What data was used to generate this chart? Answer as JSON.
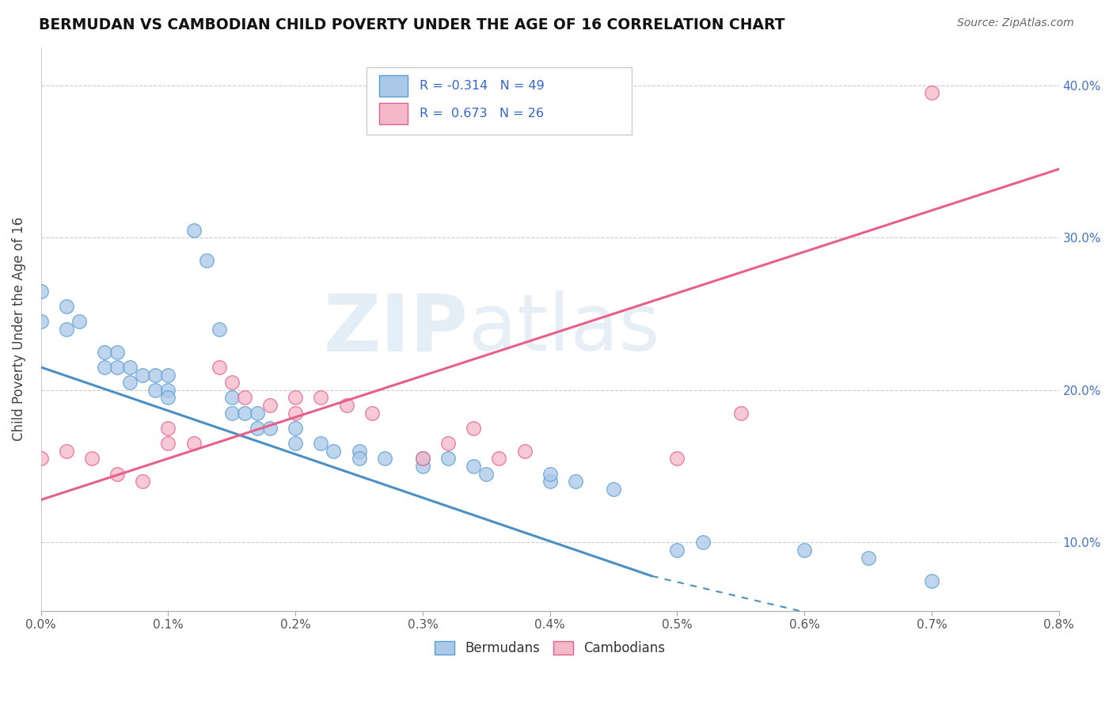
{
  "title": "BERMUDAN VS CAMBODIAN CHILD POVERTY UNDER THE AGE OF 16 CORRELATION CHART",
  "source": "Source: ZipAtlas.com",
  "ylabel": "Child Poverty Under the Age of 16",
  "xmin": 0.0,
  "xmax": 0.008,
  "ymin": 0.055,
  "ymax": 0.425,
  "ytick_vals": [
    0.1,
    0.2,
    0.3,
    0.4
  ],
  "xtick_vals": [
    0.0,
    0.001,
    0.002,
    0.003,
    0.004,
    0.005,
    0.006,
    0.007,
    0.008
  ],
  "watermark_zip": "ZIP",
  "watermark_atlas": "atlas",
  "bermuda_color": "#aac8e8",
  "bermuda_edge_color": "#5a9fd4",
  "cambodia_color": "#f5b8c8",
  "cambodia_edge_color": "#e06090",
  "bermuda_line_color": "#4a90c4",
  "cambodia_line_color": "#e8608a",
  "bermuda_scatter": [
    [
      0.0,
      0.265
    ],
    [
      0.0,
      0.245
    ],
    [
      0.0002,
      0.255
    ],
    [
      0.0002,
      0.24
    ],
    [
      0.0003,
      0.245
    ],
    [
      0.0005,
      0.225
    ],
    [
      0.0005,
      0.215
    ],
    [
      0.0006,
      0.225
    ],
    [
      0.0006,
      0.215
    ],
    [
      0.0007,
      0.215
    ],
    [
      0.0007,
      0.205
    ],
    [
      0.0008,
      0.21
    ],
    [
      0.0009,
      0.21
    ],
    [
      0.0009,
      0.2
    ],
    [
      0.001,
      0.21
    ],
    [
      0.001,
      0.2
    ],
    [
      0.001,
      0.195
    ],
    [
      0.0012,
      0.305
    ],
    [
      0.0013,
      0.285
    ],
    [
      0.0014,
      0.24
    ],
    [
      0.0015,
      0.195
    ],
    [
      0.0015,
      0.185
    ],
    [
      0.0016,
      0.185
    ],
    [
      0.0017,
      0.185
    ],
    [
      0.0017,
      0.175
    ],
    [
      0.0018,
      0.175
    ],
    [
      0.002,
      0.175
    ],
    [
      0.002,
      0.165
    ],
    [
      0.0022,
      0.165
    ],
    [
      0.0023,
      0.16
    ],
    [
      0.0025,
      0.16
    ],
    [
      0.0025,
      0.155
    ],
    [
      0.0027,
      0.155
    ],
    [
      0.003,
      0.15
    ],
    [
      0.003,
      0.155
    ],
    [
      0.0032,
      0.155
    ],
    [
      0.0034,
      0.15
    ],
    [
      0.0035,
      0.145
    ],
    [
      0.004,
      0.14
    ],
    [
      0.004,
      0.145
    ],
    [
      0.0042,
      0.14
    ],
    [
      0.0045,
      0.135
    ],
    [
      0.005,
      0.095
    ],
    [
      0.0052,
      0.1
    ],
    [
      0.006,
      0.095
    ],
    [
      0.0065,
      0.09
    ],
    [
      0.007,
      0.075
    ]
  ],
  "cambodia_scatter": [
    [
      0.0,
      0.155
    ],
    [
      0.0002,
      0.16
    ],
    [
      0.0004,
      0.155
    ],
    [
      0.0006,
      0.145
    ],
    [
      0.0008,
      0.14
    ],
    [
      0.001,
      0.175
    ],
    [
      0.001,
      0.165
    ],
    [
      0.0012,
      0.165
    ],
    [
      0.0014,
      0.215
    ],
    [
      0.0015,
      0.205
    ],
    [
      0.0016,
      0.195
    ],
    [
      0.0018,
      0.19
    ],
    [
      0.002,
      0.185
    ],
    [
      0.002,
      0.195
    ],
    [
      0.0022,
      0.195
    ],
    [
      0.0024,
      0.19
    ],
    [
      0.0026,
      0.185
    ],
    [
      0.003,
      0.155
    ],
    [
      0.0032,
      0.165
    ],
    [
      0.0034,
      0.175
    ],
    [
      0.0036,
      0.155
    ],
    [
      0.0038,
      0.16
    ],
    [
      0.005,
      0.155
    ],
    [
      0.0055,
      0.185
    ],
    [
      0.007,
      0.395
    ]
  ],
  "bermuda_line_solid": [
    [
      0.0,
      0.215
    ],
    [
      0.0048,
      0.078
    ]
  ],
  "bermuda_line_dashed": [
    [
      0.0048,
      0.078
    ],
    [
      0.008,
      0.015
    ]
  ],
  "cambodia_line": [
    [
      0.0,
      0.128
    ],
    [
      0.008,
      0.345
    ]
  ]
}
